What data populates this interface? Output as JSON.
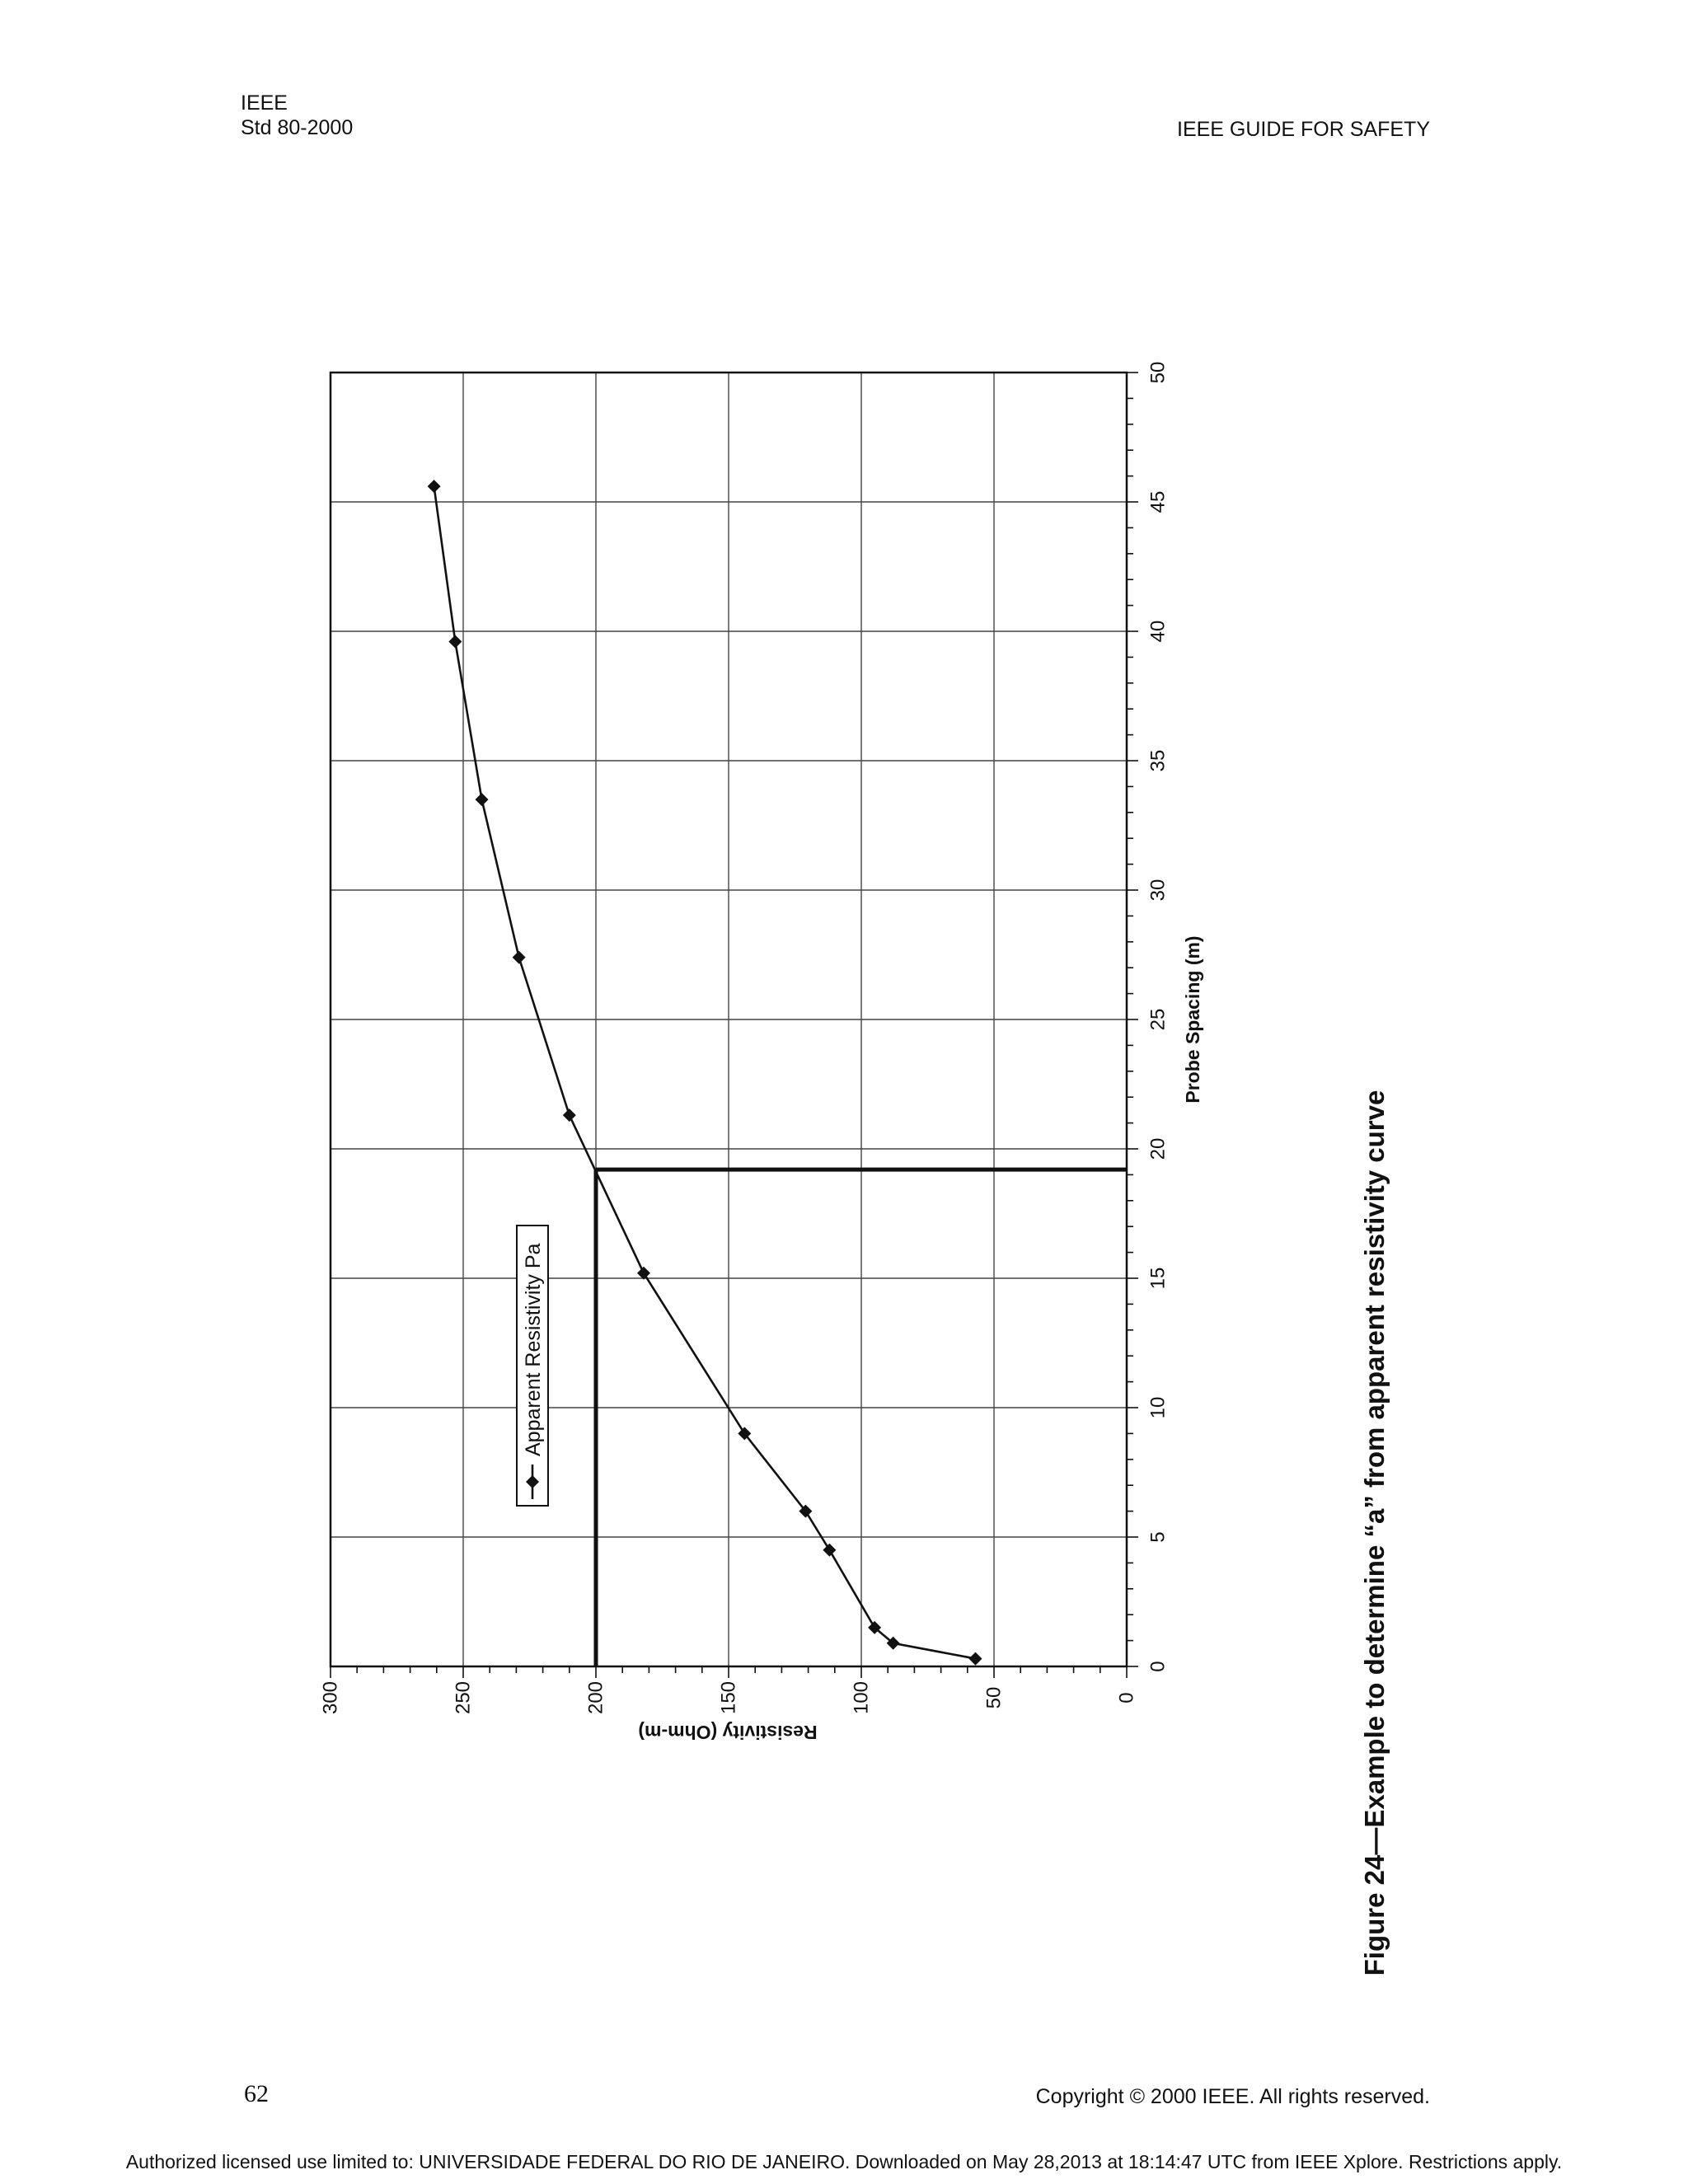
{
  "header": {
    "org": "IEEE",
    "standard": "Std 80-2000",
    "running_title": "IEEE GUIDE FOR SAFETY"
  },
  "figure": {
    "caption": "Figure 24—Example to determine “a” from apparent resistivity curve"
  },
  "chart_data": {
    "type": "line",
    "orientation": "rotated 90° counter-clockwise on the page",
    "xlabel": "Probe Spacing (m)",
    "ylabel": "Resistivity (Ohm-m)",
    "xlim": [
      0,
      50
    ],
    "ylim": [
      0,
      300
    ],
    "x_ticks": [
      "0",
      "5",
      "10",
      "15",
      "20",
      "25",
      "30",
      "35",
      "40",
      "45",
      "50"
    ],
    "y_ticks": [
      "0",
      "50",
      "100",
      "150",
      "200",
      "250",
      "300"
    ],
    "grid": true,
    "legend": "upper-left",
    "series": [
      {
        "name": "Apparent Resistivity Pa",
        "marker": "diamond",
        "x": [
          0.3,
          0.9,
          1.5,
          4.5,
          6.0,
          9.0,
          15.2,
          21.3,
          27.4,
          33.5,
          39.6,
          45.6
        ],
        "y": [
          57,
          88,
          95,
          112,
          121,
          144,
          182,
          210,
          229,
          243,
          253,
          261
        ]
      }
    ],
    "reference_lines": [
      {
        "from": [
          0,
          200
        ],
        "to": [
          19.2,
          200
        ]
      },
      {
        "from": [
          19.2,
          200
        ],
        "to": [
          19.2,
          0
        ]
      }
    ]
  },
  "footer": {
    "page_number": "62",
    "copyright": "Copyright © 2000 IEEE. All rights reserved.",
    "authorization": "Authorized licensed use limited to: UNIVERSIDADE FEDERAL DO RIO DE JANEIRO. Downloaded on May 28,2013 at 18:14:47 UTC from IEEE Xplore.  Restrictions apply."
  }
}
